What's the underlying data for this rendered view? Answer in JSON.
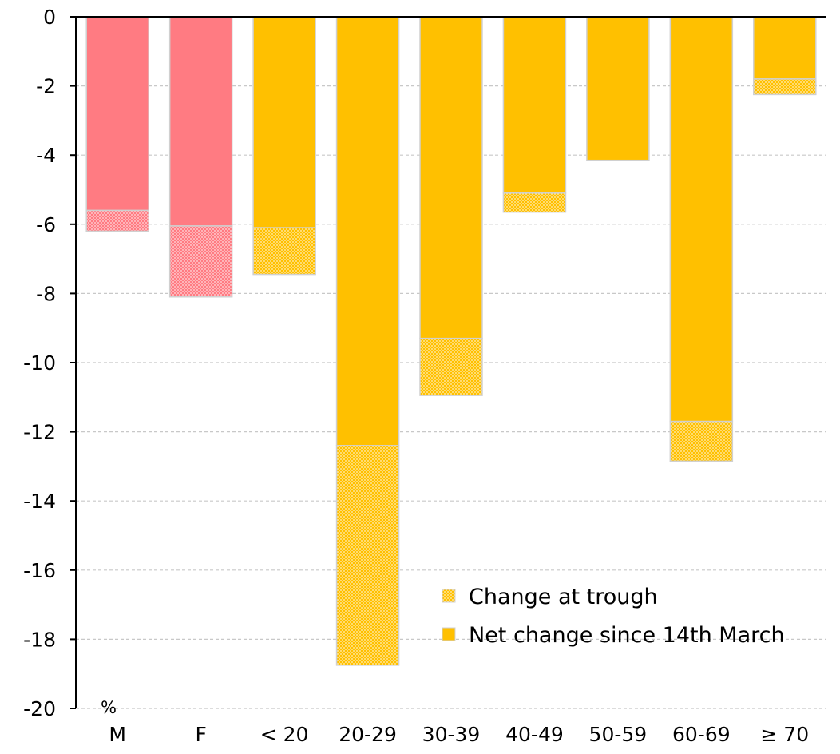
{
  "chart_data": {
    "type": "bar",
    "stacked": true,
    "unit_label": "%",
    "categories": [
      "M",
      "F",
      "< 20",
      "20-29",
      "30-39",
      "40-49",
      "50-59",
      "60-69",
      "≥ 70"
    ],
    "category_colors": [
      "#FF7B82",
      "#FF7B82",
      "#FFC000",
      "#FFC000",
      "#FFC000",
      "#FFC000",
      "#FFC000",
      "#FFC000",
      "#FFC000"
    ],
    "series": [
      {
        "name": "Net change since 14th March",
        "pattern": "solid",
        "values": [
          -5.6,
          -6.05,
          -6.1,
          -12.4,
          -9.3,
          -5.1,
          -4.15,
          -11.7,
          -1.8
        ]
      },
      {
        "name": "Change at trough",
        "pattern": "dotted",
        "values": [
          -0.6,
          -2.05,
          -1.35,
          -6.35,
          -1.65,
          -0.55,
          0,
          -1.15,
          -0.45
        ]
      }
    ],
    "ylim": [
      -20,
      0
    ],
    "yticks": [
      0,
      -2,
      -4,
      -6,
      -8,
      -10,
      -12,
      -14,
      -16,
      -18,
      -20
    ],
    "grid": true,
    "legend_position": "bottom-right",
    "legend": [
      {
        "label": "Change at trough",
        "pattern": "dotted",
        "color": "#FFC000"
      },
      {
        "label": "Net change since 14th March",
        "pattern": "solid",
        "color": "#FFC000"
      }
    ]
  }
}
